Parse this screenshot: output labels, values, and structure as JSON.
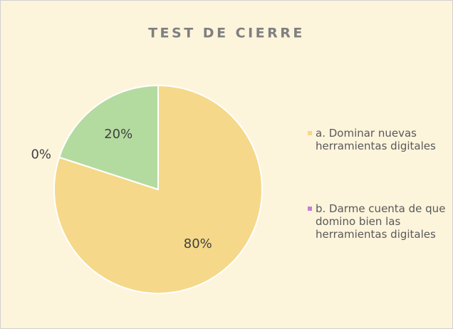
{
  "chart_data": {
    "type": "pie",
    "title": "TEST DE CIERRE",
    "categories": [
      "a. Dominar nuevas herramientas digitales",
      "b. Darme cuenta de que domino bien las herramientas digitales",
      null
    ],
    "values": [
      80,
      0,
      20
    ],
    "value_labels": [
      "80%",
      "0%",
      "20%"
    ],
    "colors": [
      "#f5d889",
      "#c47fd6",
      "#b3dba0"
    ]
  }
}
